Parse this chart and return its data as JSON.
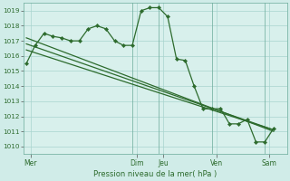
{
  "background_color": "#d0ece8",
  "plot_bg_color": "#d8f0ec",
  "grid_color": "#a8d4ce",
  "line_color": "#2d6b2d",
  "marker_color": "#2d6b2d",
  "ylabel_ticks": [
    1010,
    1011,
    1012,
    1013,
    1014,
    1015,
    1016,
    1017,
    1018,
    1019
  ],
  "ylim": [
    1009.5,
    1019.5
  ],
  "xlim": [
    -0.3,
    29.5
  ],
  "xlabel": "Pression niveau de la mer( hPa )",
  "day_labels": [
    "Mer",
    "Dim",
    "Jeu",
    "Ven",
    "Sam"
  ],
  "day_positions": [
    0.5,
    12.5,
    15.5,
    21.5,
    27.5
  ],
  "vline_positions": [
    12,
    15,
    21,
    27
  ],
  "series1_x": [
    0,
    1,
    2,
    3,
    4,
    5,
    6,
    7,
    8,
    9,
    10,
    11,
    12,
    13,
    14,
    15,
    16,
    17,
    18,
    19,
    20,
    21,
    22,
    23,
    24,
    25,
    26,
    27,
    28
  ],
  "series1_y": [
    1015.5,
    1016.7,
    1017.5,
    1017.3,
    1017.2,
    1017.0,
    1017.0,
    1017.8,
    1018.0,
    1017.8,
    1017.0,
    1016.7,
    1016.7,
    1019.0,
    1019.2,
    1019.2,
    1018.6,
    1015.8,
    1015.7,
    1014.0,
    1012.5,
    1012.5,
    1012.5,
    1011.5,
    1011.5,
    1011.8,
    1010.3,
    1010.3,
    1011.2
  ],
  "series2_x": [
    0,
    28
  ],
  "series2_y": [
    1017.2,
    1011.0
  ],
  "series3_x": [
    0,
    28
  ],
  "series3_y": [
    1016.8,
    1011.1
  ],
  "series4_x": [
    0,
    28
  ],
  "series4_y": [
    1016.4,
    1011.1
  ]
}
